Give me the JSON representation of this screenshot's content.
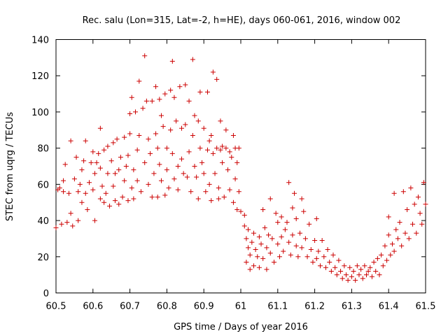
{
  "chart_data": {
    "type": "scatter",
    "title": "Rec. salu (Lon=315, Lat=-2, h=HE), days 060-061, 2016, window 002",
    "xlabel": "GPS time / Days of year 2016",
    "ylabel": "STEC from uqrg / TECUs",
    "xlim": [
      60.5,
      61.5
    ],
    "ylim": [
      0,
      140
    ],
    "xticks": [
      60.5,
      60.6,
      60.7,
      60.8,
      60.9,
      61,
      61.1,
      61.2,
      61.3,
      61.4,
      61.5
    ],
    "xtick_labels": [
      "60.5",
      "60.6",
      "60.7",
      "60.8",
      "60.9",
      "61",
      "61.1",
      "61.2",
      "61.3",
      "61.4",
      "61.5"
    ],
    "yticks": [
      0,
      20,
      40,
      60,
      80,
      100,
      120,
      140
    ],
    "ytick_labels": [
      "0",
      "20",
      "40",
      "60",
      "80",
      "100",
      "120",
      "140"
    ],
    "marker": "+",
    "marker_color": "#cc0000",
    "grid": false,
    "series": [
      {
        "points": [
          [
            60.5,
            36
          ],
          [
            60.505,
            57
          ],
          [
            60.51,
            58
          ],
          [
            60.515,
            38
          ],
          [
            60.52,
            62
          ],
          [
            60.52,
            56
          ],
          [
            60.525,
            71
          ],
          [
            60.53,
            39
          ],
          [
            60.535,
            55
          ],
          [
            60.54,
            84
          ],
          [
            60.54,
            44
          ],
          [
            60.545,
            37
          ],
          [
            60.55,
            63
          ],
          [
            60.555,
            75
          ],
          [
            60.56,
            56
          ],
          [
            60.56,
            40
          ],
          [
            60.565,
            60
          ],
          [
            60.57,
            68
          ],
          [
            60.57,
            50
          ],
          [
            60.575,
            73
          ],
          [
            60.58,
            84
          ],
          [
            60.58,
            55
          ],
          [
            60.585,
            46
          ],
          [
            60.59,
            61
          ],
          [
            60.595,
            72
          ],
          [
            60.6,
            78
          ],
          [
            60.6,
            57
          ],
          [
            60.605,
            66
          ],
          [
            60.605,
            40
          ],
          [
            60.61,
            72
          ],
          [
            60.615,
            77
          ],
          [
            60.62,
            91
          ],
          [
            60.62,
            69
          ],
          [
            60.62,
            52
          ],
          [
            60.625,
            59
          ],
          [
            60.63,
            79
          ],
          [
            60.63,
            50
          ],
          [
            60.635,
            55
          ],
          [
            60.64,
            81
          ],
          [
            60.64,
            66
          ],
          [
            60.645,
            48
          ],
          [
            60.65,
            73
          ],
          [
            60.655,
            83
          ],
          [
            60.655,
            59
          ],
          [
            60.66,
            66
          ],
          [
            60.66,
            51
          ],
          [
            60.665,
            85
          ],
          [
            60.67,
            68
          ],
          [
            60.67,
            49
          ],
          [
            60.675,
            75
          ],
          [
            60.68,
            53
          ],
          [
            60.685,
            86
          ],
          [
            60.685,
            62
          ],
          [
            60.69,
            70
          ],
          [
            60.695,
            76
          ],
          [
            60.695,
            51
          ],
          [
            60.7,
            88
          ],
          [
            60.7,
            99
          ],
          [
            60.705,
            108
          ],
          [
            60.705,
            58
          ],
          [
            60.71,
            68
          ],
          [
            60.71,
            52
          ],
          [
            60.715,
            100
          ],
          [
            60.72,
            79
          ],
          [
            60.72,
            62
          ],
          [
            60.725,
            117
          ],
          [
            60.725,
            87
          ],
          [
            60.73,
            56
          ],
          [
            60.735,
            102
          ],
          [
            60.74,
            131
          ],
          [
            60.74,
            72
          ],
          [
            60.745,
            106
          ],
          [
            60.75,
            85
          ],
          [
            60.75,
            60
          ],
          [
            60.755,
            77
          ],
          [
            60.76,
            106
          ],
          [
            60.76,
            53
          ],
          [
            60.765,
            66
          ],
          [
            60.77,
            88
          ],
          [
            60.77,
            114
          ],
          [
            60.775,
            80
          ],
          [
            60.775,
            53
          ],
          [
            60.78,
            107
          ],
          [
            60.78,
            71
          ],
          [
            60.785,
            98
          ],
          [
            60.785,
            62
          ],
          [
            60.79,
            92
          ],
          [
            60.795,
            110
          ],
          [
            60.795,
            54
          ],
          [
            60.8,
            80
          ],
          [
            60.8,
            68
          ],
          [
            60.805,
            58
          ],
          [
            60.81,
            112
          ],
          [
            60.81,
            90
          ],
          [
            60.815,
            77
          ],
          [
            60.815,
            128
          ],
          [
            60.82,
            63
          ],
          [
            60.82,
            108
          ],
          [
            60.825,
            95
          ],
          [
            60.83,
            70
          ],
          [
            60.83,
            57
          ],
          [
            60.835,
            114
          ],
          [
            60.84,
            91
          ],
          [
            60.84,
            74
          ],
          [
            60.845,
            66
          ],
          [
            60.85,
            115
          ],
          [
            60.85,
            93
          ],
          [
            60.855,
            64
          ],
          [
            60.86,
            78
          ],
          [
            60.86,
            106
          ],
          [
            60.865,
            56
          ],
          [
            60.87,
            87
          ],
          [
            60.87,
            129
          ],
          [
            60.875,
            98
          ],
          [
            60.875,
            70
          ],
          [
            60.88,
            64
          ],
          [
            60.885,
            95
          ],
          [
            60.885,
            52
          ],
          [
            60.89,
            111
          ],
          [
            60.89,
            80
          ],
          [
            60.895,
            72
          ],
          [
            60.9,
            91
          ],
          [
            60.9,
            66
          ],
          [
            60.905,
            56
          ],
          [
            60.91,
            111
          ],
          [
            60.91,
            79
          ],
          [
            60.915,
            84
          ],
          [
            60.915,
            60
          ],
          [
            60.92,
            87
          ],
          [
            60.92,
            51
          ],
          [
            60.925,
            122
          ],
          [
            60.925,
            77
          ],
          [
            60.93,
            66
          ],
          [
            60.935,
            118
          ],
          [
            60.935,
            80
          ],
          [
            60.94,
            58
          ],
          [
            60.94,
            52
          ],
          [
            60.945,
            95
          ],
          [
            60.945,
            79
          ],
          [
            60.95,
            81
          ],
          [
            60.95,
            72
          ],
          [
            60.955,
            53
          ],
          [
            60.96,
            90
          ],
          [
            60.96,
            80
          ],
          [
            60.965,
            68
          ],
          [
            60.97,
            78
          ],
          [
            60.97,
            57
          ],
          [
            60.975,
            75
          ],
          [
            60.98,
            87
          ],
          [
            60.98,
            50
          ],
          [
            60.985,
            80
          ],
          [
            60.985,
            63
          ],
          [
            60.99,
            72
          ],
          [
            60.99,
            46
          ],
          [
            60.995,
            80
          ],
          [
            60.995,
            56
          ],
          [
            61.0,
            45
          ]
        ]
      },
      {
        "points": [
          [
            61.01,
            43
          ],
          [
            61.01,
            37
          ],
          [
            61.015,
            30
          ],
          [
            61.015,
            17
          ],
          [
            61.02,
            25
          ],
          [
            61.02,
            35
          ],
          [
            61.025,
            21
          ],
          [
            61.025,
            13
          ],
          [
            61.03,
            28
          ],
          [
            61.035,
            33
          ],
          [
            61.035,
            15
          ],
          [
            61.04,
            24
          ],
          [
            61.045,
            20
          ],
          [
            61.05,
            31
          ],
          [
            61.05,
            14
          ],
          [
            61.055,
            27
          ],
          [
            61.06,
            46
          ],
          [
            61.06,
            19
          ],
          [
            61.065,
            36
          ],
          [
            61.07,
            25
          ],
          [
            61.07,
            13
          ],
          [
            61.075,
            32
          ],
          [
            61.08,
            52
          ],
          [
            61.08,
            22
          ],
          [
            61.085,
            30
          ],
          [
            61.09,
            17
          ],
          [
            61.095,
            44
          ],
          [
            61.1,
            27
          ],
          [
            61.1,
            39
          ],
          [
            61.105,
            20
          ],
          [
            61.11,
            42
          ],
          [
            61.11,
            31
          ],
          [
            61.115,
            23
          ],
          [
            61.12,
            35
          ],
          [
            61.125,
            39
          ],
          [
            61.13,
            61
          ],
          [
            61.13,
            28
          ],
          [
            61.135,
            21
          ],
          [
            61.14,
            32
          ],
          [
            61.14,
            47
          ],
          [
            61.145,
            55
          ],
          [
            61.15,
            26
          ],
          [
            61.15,
            41
          ],
          [
            61.155,
            20
          ],
          [
            61.16,
            33
          ],
          [
            61.165,
            52
          ],
          [
            61.165,
            25
          ],
          [
            61.17,
            45
          ],
          [
            61.175,
            30
          ],
          [
            61.18,
            20
          ],
          [
            61.185,
            38
          ],
          [
            61.19,
            24
          ],
          [
            61.195,
            17
          ],
          [
            61.2,
            29
          ],
          [
            61.205,
            41
          ],
          [
            61.205,
            19
          ],
          [
            61.21,
            23
          ],
          [
            61.215,
            15
          ],
          [
            61.22,
            29
          ],
          [
            61.225,
            20
          ],
          [
            61.23,
            14
          ],
          [
            61.235,
            24
          ],
          [
            61.24,
            17
          ],
          [
            61.245,
            12
          ],
          [
            61.25,
            21
          ],
          [
            61.255,
            14
          ],
          [
            61.26,
            10
          ],
          [
            61.265,
            18
          ],
          [
            61.27,
            12
          ],
          [
            61.275,
            8
          ],
          [
            61.28,
            15
          ],
          [
            61.285,
            10
          ],
          [
            61.29,
            7
          ],
          [
            61.295,
            14
          ],
          [
            61.3,
            9
          ],
          [
            61.305,
            12
          ],
          [
            61.31,
            7
          ],
          [
            61.315,
            15
          ],
          [
            61.32,
            10
          ],
          [
            61.325,
            13
          ],
          [
            61.33,
            8
          ],
          [
            61.335,
            15
          ],
          [
            61.34,
            10
          ],
          [
            61.345,
            12
          ],
          [
            61.35,
            14
          ],
          [
            61.355,
            9
          ],
          [
            61.36,
            17
          ],
          [
            61.365,
            12
          ],
          [
            61.37,
            19
          ],
          [
            61.375,
            10
          ],
          [
            61.38,
            21
          ],
          [
            61.385,
            15
          ],
          [
            61.39,
            26
          ],
          [
            61.395,
            18
          ],
          [
            61.4,
            32
          ],
          [
            61.4,
            42
          ],
          [
            61.405,
            21
          ],
          [
            61.41,
            27
          ],
          [
            61.415,
            55
          ],
          [
            61.415,
            23
          ],
          [
            61.42,
            35
          ],
          [
            61.425,
            30
          ],
          [
            61.43,
            39
          ],
          [
            61.435,
            26
          ],
          [
            61.44,
            56
          ],
          [
            61.445,
            33
          ],
          [
            61.45,
            46
          ],
          [
            61.455,
            30
          ],
          [
            61.46,
            58
          ],
          [
            61.465,
            38
          ],
          [
            61.47,
            49
          ],
          [
            61.475,
            33
          ],
          [
            61.48,
            53
          ],
          [
            61.485,
            44
          ],
          [
            61.49,
            38
          ],
          [
            61.495,
            61
          ],
          [
            61.5,
            49
          ]
        ]
      }
    ]
  }
}
